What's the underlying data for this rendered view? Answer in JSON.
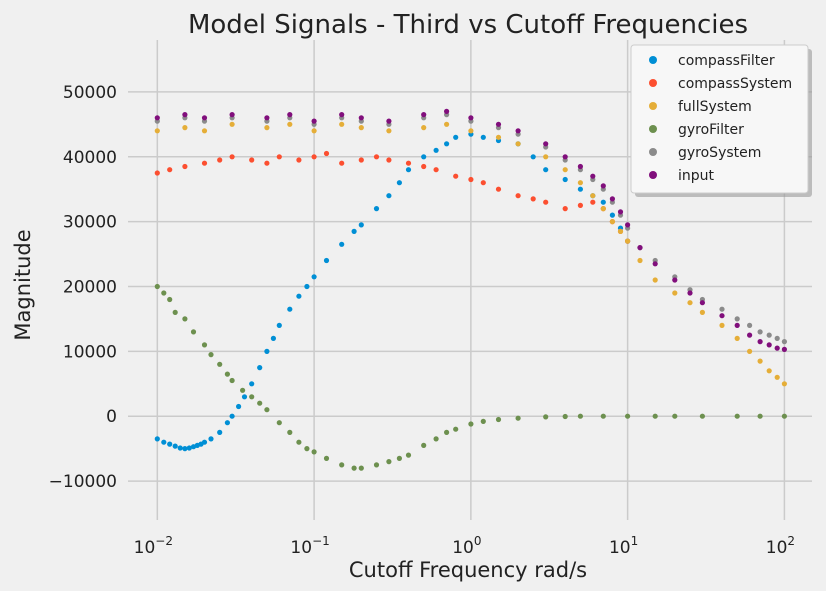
{
  "chart_data": {
    "type": "scatter",
    "title": "Model Signals - Third vs Cutoff Frequencies",
    "xlabel": "Cutoff Frequency rad/s",
    "ylabel": "Magnitude",
    "xscale": "log",
    "xlim": [
      0.0065,
      150
    ],
    "ylim": [
      -16000,
      58000
    ],
    "x_ticks": [
      0.01,
      0.1,
      1,
      10,
      100
    ],
    "x_tick_labels": [
      {
        "base": "10",
        "exp": "−2"
      },
      {
        "base": "10",
        "exp": "−1"
      },
      {
        "base": "10",
        "exp": "0"
      },
      {
        "base": "10",
        "exp": "1"
      },
      {
        "base": "10",
        "exp": "2"
      }
    ],
    "y_ticks": [
      -10000,
      0,
      10000,
      20000,
      30000,
      40000,
      50000
    ],
    "y_tick_labels": [
      "−10000",
      "0",
      "10000",
      "20000",
      "30000",
      "40000",
      "50000"
    ],
    "grid": true,
    "legend_position": "top-right",
    "series": [
      {
        "name": "compassFilter",
        "color": "#008fd5",
        "x": [
          0.01,
          0.011,
          0.012,
          0.013,
          0.014,
          0.015,
          0.016,
          0.017,
          0.018,
          0.019,
          0.02,
          0.022,
          0.025,
          0.028,
          0.03,
          0.033,
          0.036,
          0.04,
          0.045,
          0.05,
          0.055,
          0.06,
          0.07,
          0.08,
          0.09,
          0.1,
          0.12,
          0.15,
          0.18,
          0.2,
          0.25,
          0.3,
          0.35,
          0.4,
          0.5,
          0.6,
          0.7,
          0.8,
          1.0,
          1.2,
          1.5,
          2.0,
          2.5,
          3.0,
          4.0,
          5.0,
          6.0,
          7.0,
          8.0,
          9.0,
          10.0
        ],
        "y": [
          -3500,
          -4000,
          -4300,
          -4600,
          -4900,
          -5000,
          -4900,
          -4700,
          -4500,
          -4300,
          -4000,
          -3500,
          -2500,
          -1000,
          0,
          1500,
          3000,
          5000,
          7500,
          10000,
          12000,
          14000,
          16500,
          18500,
          20000,
          21500,
          24000,
          26500,
          28500,
          29500,
          32000,
          34000,
          36000,
          38000,
          40000,
          41000,
          42000,
          43000,
          43500,
          43000,
          42500,
          42000,
          40000,
          38000,
          36500,
          35000,
          34000,
          33000,
          31000,
          29000,
          27000
        ]
      },
      {
        "name": "compassSystem",
        "color": "#fc4f30",
        "x": [
          0.01,
          0.012,
          0.015,
          0.02,
          0.025,
          0.03,
          0.04,
          0.05,
          0.06,
          0.08,
          0.1,
          0.12,
          0.15,
          0.2,
          0.25,
          0.3,
          0.4,
          0.5,
          0.6,
          0.8,
          1.0,
          1.2,
          1.5,
          2.0,
          2.5,
          3.0,
          4.0,
          5.0,
          6.0,
          7.0,
          8.0,
          9.0,
          10.0
        ],
        "y": [
          37500,
          38000,
          38500,
          39000,
          39500,
          40000,
          39500,
          39000,
          40000,
          39500,
          40000,
          40500,
          39000,
          39500,
          40000,
          39500,
          39000,
          38500,
          38000,
          37000,
          36500,
          36000,
          35000,
          34000,
          33500,
          33000,
          32000,
          32500,
          33000,
          32000,
          30000,
          28500,
          27000
        ]
      },
      {
        "name": "fullSystem",
        "color": "#e5ae38",
        "x": [
          0.01,
          0.015,
          0.02,
          0.03,
          0.05,
          0.07,
          0.1,
          0.15,
          0.2,
          0.3,
          0.5,
          0.7,
          1.0,
          1.5,
          2.0,
          3.0,
          4.0,
          5.0,
          6.0,
          7.0,
          8.0,
          9.0,
          10.0,
          12.0,
          15.0,
          20.0,
          25.0,
          30.0,
          40.0,
          50.0,
          60.0,
          70.0,
          80.0,
          90.0,
          100.0
        ],
        "y": [
          44000,
          44500,
          44000,
          45000,
          44500,
          45000,
          44000,
          45000,
          44500,
          44000,
          44500,
          45000,
          44000,
          43000,
          42000,
          40000,
          38000,
          36000,
          34000,
          32000,
          30000,
          28500,
          27000,
          24000,
          21000,
          19000,
          17500,
          16000,
          14000,
          12000,
          10000,
          8500,
          7000,
          6000,
          5000
        ]
      },
      {
        "name": "gyroFilter",
        "color": "#6d904f",
        "x": [
          0.01,
          0.011,
          0.012,
          0.013,
          0.015,
          0.017,
          0.02,
          0.022,
          0.025,
          0.028,
          0.03,
          0.035,
          0.04,
          0.045,
          0.05,
          0.06,
          0.07,
          0.08,
          0.09,
          0.1,
          0.12,
          0.15,
          0.18,
          0.2,
          0.25,
          0.3,
          0.35,
          0.4,
          0.5,
          0.6,
          0.7,
          0.8,
          1.0,
          1.2,
          1.5,
          2.0,
          3.0,
          4.0,
          5.0,
          7.0,
          10.0,
          15.0,
          20.0,
          30.0,
          50.0,
          70.0,
          100.0
        ],
        "y": [
          20000,
          19000,
          18000,
          16000,
          15000,
          13000,
          11000,
          9500,
          8000,
          6500,
          5500,
          4000,
          3000,
          2000,
          1000,
          -1000,
          -2500,
          -4000,
          -5000,
          -5500,
          -6500,
          -7500,
          -8000,
          -8000,
          -7500,
          -7000,
          -6500,
          -6000,
          -4500,
          -3500,
          -2500,
          -2000,
          -1200,
          -800,
          -500,
          -300,
          -100,
          -50,
          0,
          0,
          0,
          0,
          0,
          0,
          0,
          0,
          0
        ]
      },
      {
        "name": "gyroSystem",
        "color": "#8b8b8b",
        "x": [
          0.01,
          0.015,
          0.02,
          0.03,
          0.05,
          0.07,
          0.1,
          0.15,
          0.2,
          0.3,
          0.5,
          0.7,
          1.0,
          1.5,
          2.0,
          3.0,
          4.0,
          5.0,
          6.0,
          7.0,
          8.0,
          9.0,
          10.0,
          12.0,
          15.0,
          20.0,
          25.0,
          30.0,
          40.0,
          50.0,
          60.0,
          70.0,
          80.0,
          90.0,
          100.0
        ],
        "y": [
          45500,
          46000,
          45500,
          46000,
          45500,
          46000,
          45000,
          46000,
          45500,
          45000,
          46000,
          46500,
          45500,
          44500,
          43500,
          41500,
          39500,
          38000,
          36500,
          35000,
          33000,
          31000,
          29000,
          26000,
          24000,
          21500,
          19500,
          18000,
          16500,
          15000,
          14000,
          13000,
          12500,
          12000,
          11500
        ]
      },
      {
        "name": "input",
        "color": "#810f7c",
        "x": [
          0.01,
          0.015,
          0.02,
          0.03,
          0.05,
          0.07,
          0.1,
          0.15,
          0.2,
          0.3,
          0.5,
          0.7,
          1.0,
          1.5,
          2.0,
          3.0,
          4.0,
          5.0,
          6.0,
          7.0,
          8.0,
          9.0,
          10.0,
          12.0,
          15.0,
          20.0,
          25.0,
          30.0,
          40.0,
          50.0,
          60.0,
          70.0,
          80.0,
          90.0,
          100.0
        ],
        "y": [
          46000,
          46500,
          46000,
          46500,
          46000,
          46500,
          45500,
          46500,
          46000,
          45500,
          46500,
          47000,
          46000,
          45000,
          44000,
          42000,
          40000,
          38500,
          37000,
          35500,
          33500,
          31500,
          29500,
          26000,
          23500,
          21000,
          19000,
          17500,
          15500,
          14000,
          12500,
          11500,
          11000,
          10500,
          10300
        ]
      }
    ]
  }
}
